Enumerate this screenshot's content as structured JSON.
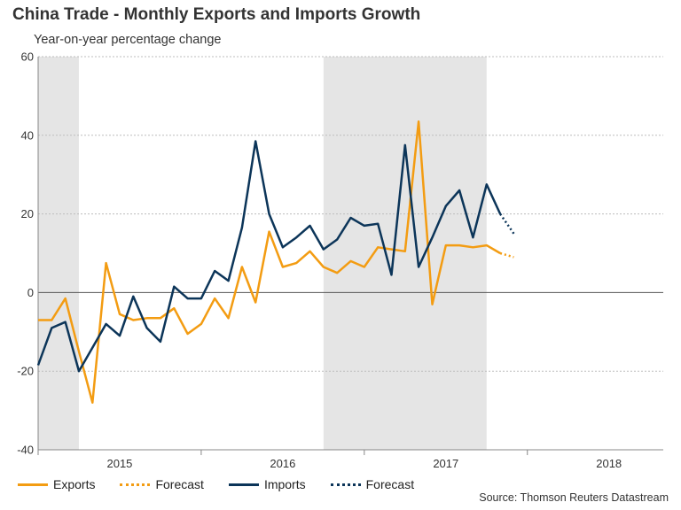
{
  "title": "China Trade - Monthly Exports and Imports Growth",
  "subtitle": "Year-on-year percentage change",
  "source": "Source: Thomson Reuters Datastream",
  "colors": {
    "exports": "#f39c12",
    "imports": "#0c3559",
    "shade": "#e5e5e5"
  },
  "legend": {
    "exports": "Exports",
    "exports_forecast": "Forecast",
    "imports": "Imports",
    "imports_forecast": "Forecast"
  },
  "chart_data": {
    "type": "line",
    "title": "China Trade - Monthly Exports and Imports Growth",
    "subtitle": "Year-on-year percentage change",
    "ylim": [
      -40,
      60
    ],
    "yticks": [
      -40,
      -20,
      0,
      20,
      40,
      60
    ],
    "xlim": [
      "2015-01",
      "2018-11"
    ],
    "x_tick_labels": [
      {
        "label": "2015",
        "at": "2015-07"
      },
      {
        "label": "2016",
        "at": "2016-07"
      },
      {
        "label": "2017",
        "at": "2017-07"
      },
      {
        "label": "2018",
        "at": "2018-07"
      }
    ],
    "shaded_periods": [
      [
        "2015-01",
        "2015-04"
      ],
      [
        "2016-10",
        "2017-10"
      ]
    ],
    "gridlines": true,
    "legend_position": "bottom",
    "x": [
      "2015-01",
      "2015-02",
      "2015-03",
      "2015-04",
      "2015-05",
      "2015-06",
      "2015-07",
      "2015-08",
      "2015-09",
      "2015-10",
      "2015-11",
      "2015-12",
      "2016-01",
      "2016-02",
      "2016-03",
      "2016-04",
      "2016-05",
      "2016-06",
      "2016-07",
      "2016-08",
      "2016-09",
      "2016-10",
      "2016-11",
      "2016-12",
      "2017-01",
      "2017-02",
      "2017-03",
      "2017-04",
      "2017-05",
      "2017-06",
      "2017-07",
      "2017-08",
      "2017-09",
      "2017-10",
      "2017-11",
      "2017-12",
      "2018-01",
      "2018-02",
      "2018-03",
      "2018-04",
      "2018-05",
      "2018-06",
      "2018-07",
      "2018-08",
      "2018-09",
      "2018-10",
      "2018-11"
    ],
    "series": [
      {
        "name": "Exports",
        "values": [
          -7,
          -7,
          -1.5,
          -15,
          -28,
          7.5,
          -5.5,
          -7,
          -6.5,
          -6.5,
          -4,
          -10.5,
          -8,
          -1.5,
          -6.5,
          6.5,
          -2.5,
          15.5,
          6.5,
          7.5,
          10.5,
          6.5,
          5,
          8,
          6.5,
          11.5,
          11,
          10.5,
          43.5,
          -3,
          12,
          12,
          11.5,
          12,
          10,
          null,
          null,
          null,
          null,
          null,
          null,
          null,
          null,
          null,
          null,
          null,
          null
        ]
      },
      {
        "name": "Forecast",
        "values": [
          null,
          null,
          null,
          null,
          null,
          null,
          null,
          null,
          null,
          null,
          null,
          null,
          null,
          null,
          null,
          null,
          null,
          null,
          null,
          null,
          null,
          null,
          null,
          null,
          null,
          null,
          null,
          null,
          null,
          null,
          null,
          null,
          null,
          null,
          10,
          9,
          null,
          null,
          null,
          null,
          null,
          null,
          null,
          null,
          null,
          null,
          null
        ]
      },
      {
        "name": "Imports",
        "values": [
          -18.5,
          -9,
          -7.5,
          -20,
          -14,
          -8,
          -11,
          -1,
          -9,
          -12.5,
          1.5,
          -1.5,
          -1.5,
          5.5,
          3,
          16.5,
          38.5,
          20,
          11.5,
          14,
          17,
          11,
          13.5,
          19,
          17,
          17.5,
          4.5,
          37.5,
          6.5,
          14,
          22,
          26,
          14,
          27.5,
          20,
          null,
          null,
          null,
          null,
          null,
          null,
          null,
          null,
          null,
          null,
          null,
          null
        ]
      },
      {
        "name": "Forecast",
        "values": [
          null,
          null,
          null,
          null,
          null,
          null,
          null,
          null,
          null,
          null,
          null,
          null,
          null,
          null,
          null,
          null,
          null,
          null,
          null,
          null,
          null,
          null,
          null,
          null,
          null,
          null,
          null,
          null,
          null,
          null,
          null,
          null,
          null,
          null,
          20,
          15,
          null,
          null,
          null,
          null,
          null,
          null,
          null,
          null,
          null,
          null,
          null
        ]
      }
    ]
  }
}
